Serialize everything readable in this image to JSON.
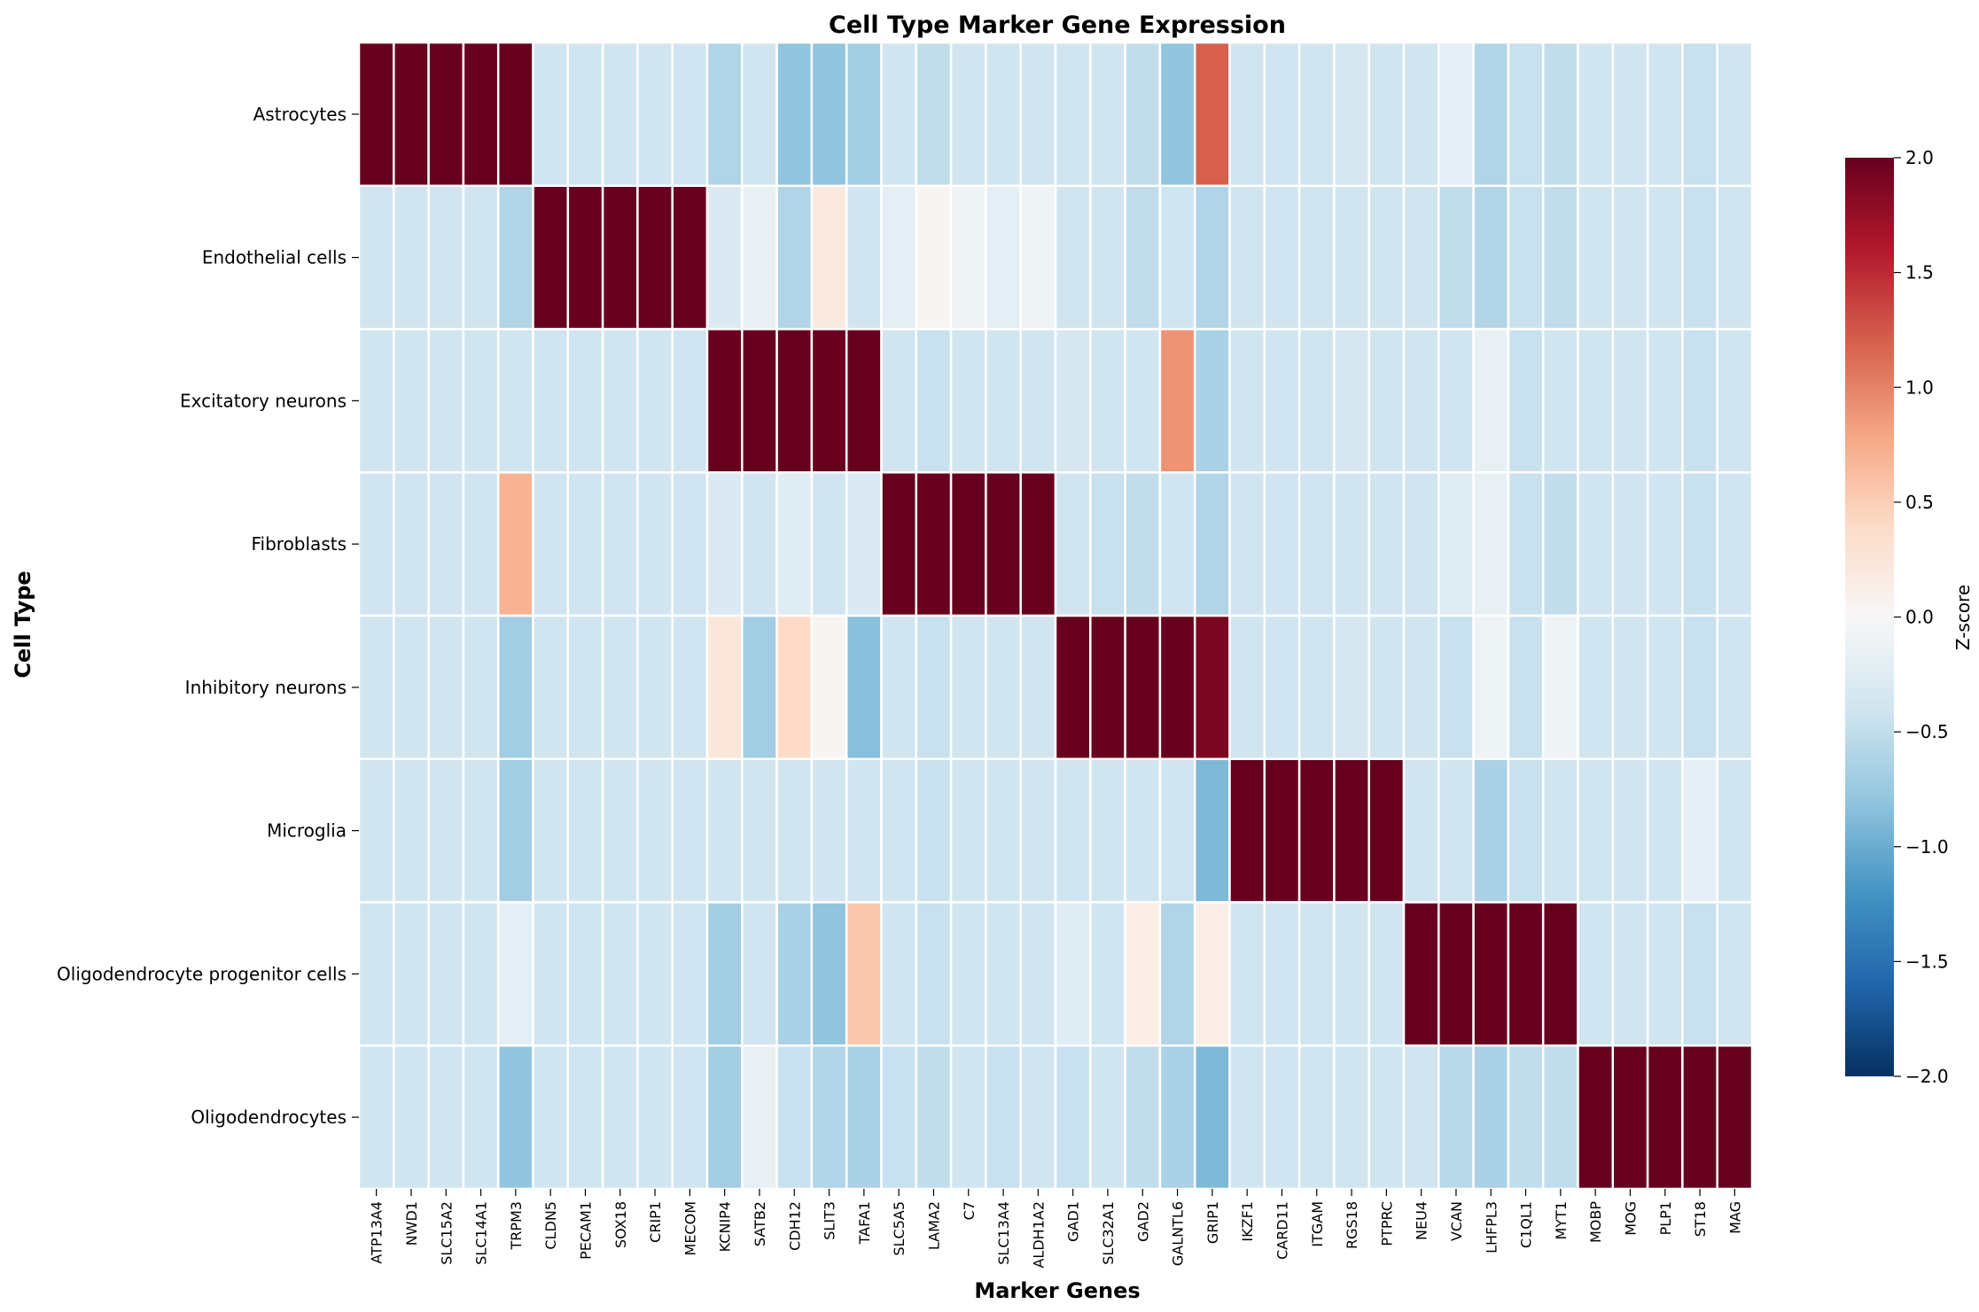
{
  "chart_data": {
    "type": "heatmap",
    "title": "Cell Type Marker Gene Expression",
    "xlabel": "Marker Genes",
    "ylabel": "Cell Type",
    "colorbar_label": "Z-score",
    "colormap": "RdBu_r",
    "vmin": -2.0,
    "vmax": 2.0,
    "colorbar_ticks": [
      "−2.0",
      "−1.5",
      "−1.0",
      "−0.5",
      "0.0",
      "0.5",
      "1.0",
      "1.5",
      "2.0"
    ],
    "rows": [
      "Astrocytes",
      "Endothelial cells",
      "Excitatory neurons",
      "Fibroblasts",
      "Inhibitory neurons",
      "Microglia",
      "Oligodendrocyte progenitor cells",
      "Oligodendrocytes"
    ],
    "columns": [
      "ATP13A4",
      "NWD1",
      "SLC15A2",
      "SLC14A1",
      "TRPM3",
      "CLDN5",
      "PECAM1",
      "SOX18",
      "CRIP1",
      "MECOM",
      "KCNIP4",
      "SATB2",
      "CDH12",
      "SLIT3",
      "TAFA1",
      "SLC5A5",
      "LAMA2",
      "C7",
      "SLC13A4",
      "ALDH1A2",
      "GAD1",
      "SLC32A1",
      "GAD2",
      "GALNTL6",
      "GRIP1",
      "IKZF1",
      "CARD11",
      "ITGAM",
      "RGS18",
      "PTPRC",
      "NEU4",
      "VCAN",
      "LHFPL3",
      "C1QL1",
      "MYT1",
      "MOBP",
      "MOG",
      "PLP1",
      "ST18",
      "MAG"
    ],
    "values": [
      [
        2.5,
        2.5,
        2.5,
        2.5,
        2.5,
        -0.4,
        -0.4,
        -0.4,
        -0.4,
        -0.4,
        -0.6,
        -0.4,
        -0.8,
        -0.8,
        -0.7,
        -0.4,
        -0.5,
        -0.4,
        -0.4,
        -0.4,
        -0.4,
        -0.4,
        -0.5,
        -0.8,
        1.2,
        -0.4,
        -0.4,
        -0.4,
        -0.35,
        -0.4,
        -0.4,
        -0.2,
        -0.6,
        -0.45,
        -0.5,
        -0.4,
        -0.4,
        -0.4,
        -0.45,
        -0.4
      ],
      [
        -0.4,
        -0.4,
        -0.4,
        -0.4,
        -0.6,
        2.5,
        2.5,
        2.5,
        2.5,
        2.5,
        -0.3,
        -0.15,
        -0.6,
        0.2,
        -0.4,
        -0.2,
        0.05,
        -0.1,
        -0.2,
        -0.1,
        -0.4,
        -0.4,
        -0.5,
        -0.4,
        -0.6,
        -0.4,
        -0.4,
        -0.4,
        -0.4,
        -0.4,
        -0.4,
        -0.5,
        -0.6,
        -0.45,
        -0.5,
        -0.4,
        -0.4,
        -0.4,
        -0.45,
        -0.4
      ],
      [
        -0.4,
        -0.4,
        -0.4,
        -0.4,
        -0.4,
        -0.4,
        -0.4,
        -0.4,
        -0.4,
        -0.4,
        2.5,
        2.5,
        2.5,
        2.5,
        2.5,
        -0.4,
        -0.45,
        -0.4,
        -0.4,
        -0.4,
        -0.35,
        -0.4,
        -0.4,
        0.9,
        -0.65,
        -0.4,
        -0.4,
        -0.4,
        -0.35,
        -0.4,
        -0.4,
        -0.4,
        -0.15,
        -0.45,
        -0.4,
        -0.4,
        -0.4,
        -0.4,
        -0.45,
        -0.4
      ],
      [
        -0.4,
        -0.4,
        -0.4,
        -0.4,
        0.7,
        -0.4,
        -0.4,
        -0.4,
        -0.4,
        -0.4,
        -0.3,
        -0.4,
        -0.25,
        -0.4,
        -0.3,
        2.5,
        2.5,
        2.5,
        2.5,
        2.5,
        -0.4,
        -0.45,
        -0.5,
        -0.4,
        -0.6,
        -0.4,
        -0.4,
        -0.4,
        -0.4,
        -0.4,
        -0.4,
        -0.25,
        -0.15,
        -0.45,
        -0.5,
        -0.4,
        -0.4,
        -0.4,
        -0.45,
        -0.4
      ],
      [
        -0.4,
        -0.4,
        -0.4,
        -0.4,
        -0.7,
        -0.4,
        -0.4,
        -0.4,
        -0.4,
        -0.4,
        0.25,
        -0.7,
        0.4,
        0.05,
        -0.85,
        -0.4,
        -0.45,
        -0.4,
        -0.4,
        -0.4,
        2.5,
        2.5,
        2.5,
        2.5,
        1.9,
        -0.4,
        -0.4,
        -0.4,
        -0.35,
        -0.4,
        -0.4,
        -0.45,
        -0.1,
        -0.45,
        -0.1,
        -0.4,
        -0.4,
        -0.4,
        -0.45,
        -0.4
      ],
      [
        -0.4,
        -0.4,
        -0.4,
        -0.4,
        -0.7,
        -0.4,
        -0.4,
        -0.4,
        -0.4,
        -0.4,
        -0.4,
        -0.4,
        -0.4,
        -0.4,
        -0.4,
        -0.4,
        -0.45,
        -0.4,
        -0.4,
        -0.4,
        -0.4,
        -0.4,
        -0.4,
        -0.4,
        -0.9,
        2.5,
        2.5,
        2.5,
        2.5,
        2.5,
        -0.4,
        -0.4,
        -0.65,
        -0.45,
        -0.4,
        -0.4,
        -0.4,
        -0.4,
        -0.2,
        -0.4
      ],
      [
        -0.4,
        -0.4,
        -0.4,
        -0.4,
        -0.2,
        -0.4,
        -0.4,
        -0.4,
        -0.4,
        -0.4,
        -0.7,
        -0.4,
        -0.65,
        -0.8,
        0.55,
        -0.4,
        -0.45,
        -0.4,
        -0.4,
        -0.4,
        -0.25,
        -0.4,
        0.15,
        -0.6,
        0.15,
        -0.4,
        -0.4,
        -0.4,
        -0.4,
        -0.4,
        2.5,
        2.5,
        2.5,
        2.5,
        2.5,
        -0.4,
        -0.4,
        -0.4,
        -0.45,
        -0.4
      ],
      [
        -0.4,
        -0.4,
        -0.4,
        -0.4,
        -0.8,
        -0.4,
        -0.4,
        -0.4,
        -0.4,
        -0.4,
        -0.7,
        -0.15,
        -0.45,
        -0.6,
        -0.65,
        -0.45,
        -0.5,
        -0.4,
        -0.45,
        -0.4,
        -0.45,
        -0.4,
        -0.5,
        -0.65,
        -0.9,
        -0.4,
        -0.4,
        -0.4,
        -0.4,
        -0.4,
        -0.4,
        -0.55,
        -0.65,
        -0.5,
        -0.5,
        2.5,
        2.5,
        2.5,
        2.5,
        2.5
      ]
    ]
  }
}
